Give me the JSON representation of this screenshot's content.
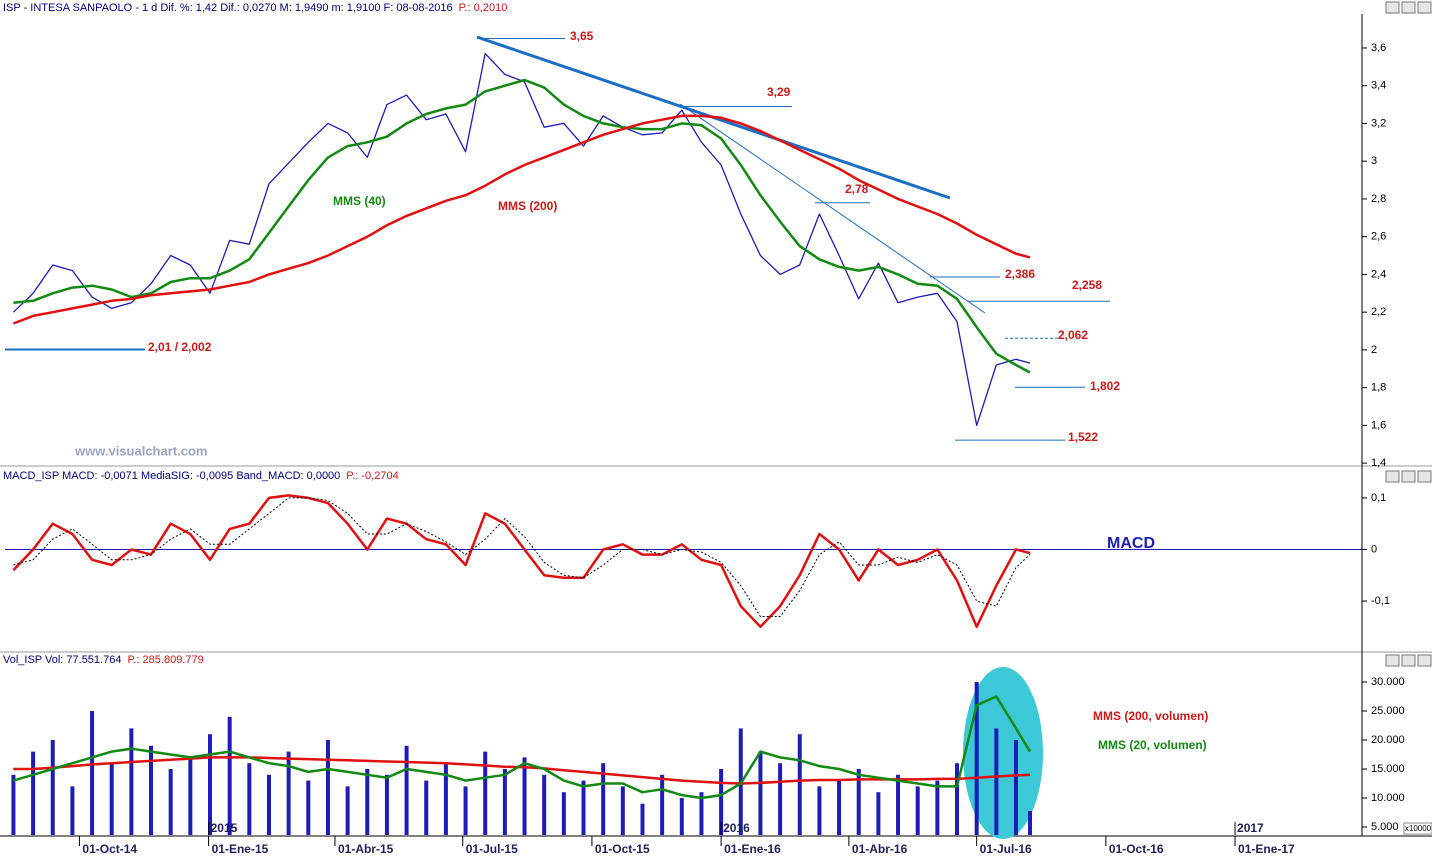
{
  "chart_data": [
    {
      "type": "line",
      "title": "ISP - INTESA SANPAOLO - 1 d Dif. %: 1,42 Dif.: 0,0270 M: 1,9490 m: 1,9100 F: 08-08-2016",
      "subtitle": "P.: 0,2010",
      "watermark": "www.visualchart.com",
      "x": [
        "2014-08-15",
        "2014-08-29",
        "2014-09-12",
        "2014-09-26",
        "2014-10-10",
        "2014-10-24",
        "2014-11-07",
        "2014-11-21",
        "2014-12-05",
        "2014-12-19",
        "2015-01-02",
        "2015-01-16",
        "2015-01-30",
        "2015-02-13",
        "2015-02-27",
        "2015-03-13",
        "2015-03-27",
        "2015-04-10",
        "2015-04-24",
        "2015-05-08",
        "2015-05-22",
        "2015-06-05",
        "2015-06-19",
        "2015-07-03",
        "2015-07-17",
        "2015-07-31",
        "2015-08-14",
        "2015-08-28",
        "2015-09-11",
        "2015-09-25",
        "2015-10-09",
        "2015-10-23",
        "2015-11-06",
        "2015-11-20",
        "2015-12-04",
        "2015-12-18",
        "2016-01-01",
        "2016-01-15",
        "2016-01-29",
        "2016-02-12",
        "2016-02-26",
        "2016-03-11",
        "2016-03-25",
        "2016-04-08",
        "2016-04-22",
        "2016-05-06",
        "2016-05-20",
        "2016-06-03",
        "2016-06-17",
        "2016-07-01",
        "2016-07-15",
        "2016-07-29",
        "2016-08-08"
      ],
      "series": [
        {
          "color": "#1c1cb8",
          "values": [
            2.2,
            2.3,
            2.45,
            2.42,
            2.28,
            2.22,
            2.25,
            2.35,
            2.5,
            2.45,
            2.3,
            2.58,
            2.56,
            2.88,
            2.99,
            3.1,
            3.2,
            3.15,
            3.02,
            3.3,
            3.35,
            3.22,
            3.25,
            3.05,
            3.57,
            3.46,
            3.42,
            3.18,
            3.2,
            3.08,
            3.24,
            3.18,
            3.14,
            3.15,
            3.27,
            3.1,
            2.98,
            2.72,
            2.5,
            2.4,
            2.45,
            2.72,
            2.5,
            2.27,
            2.46,
            2.25,
            2.28,
            2.3,
            2.15,
            1.6,
            1.92,
            1.95,
            1.93
          ]
        },
        {
          "name": "MMS (40)",
          "color": "#128a12",
          "values": [
            2.25,
            2.26,
            2.3,
            2.33,
            2.34,
            2.32,
            2.28,
            2.3,
            2.36,
            2.38,
            2.38,
            2.42,
            2.48,
            2.62,
            2.76,
            2.9,
            3.02,
            3.08,
            3.1,
            3.13,
            3.2,
            3.25,
            3.28,
            3.3,
            3.37,
            3.4,
            3.43,
            3.39,
            3.3,
            3.24,
            3.2,
            3.18,
            3.17,
            3.17,
            3.2,
            3.19,
            3.12,
            2.98,
            2.82,
            2.68,
            2.55,
            2.48,
            2.44,
            2.42,
            2.44,
            2.4,
            2.35,
            2.34,
            2.27,
            2.12,
            1.98,
            1.92,
            1.88
          ]
        },
        {
          "name": "MMS (200)",
          "color": "#e01010",
          "values": [
            2.14,
            2.18,
            2.2,
            2.22,
            2.24,
            2.26,
            2.27,
            2.29,
            2.3,
            2.31,
            2.32,
            2.34,
            2.36,
            2.4,
            2.43,
            2.46,
            2.5,
            2.55,
            2.6,
            2.66,
            2.71,
            2.75,
            2.79,
            2.82,
            2.87,
            2.93,
            2.98,
            3.02,
            3.06,
            3.1,
            3.14,
            3.17,
            3.2,
            3.22,
            3.24,
            3.24,
            3.23,
            3.2,
            3.16,
            3.11,
            3.06,
            3.01,
            2.96,
            2.9,
            2.85,
            2.8,
            2.76,
            2.72,
            2.67,
            2.61,
            2.56,
            2.51,
            2.49
          ]
        }
      ],
      "xlim": [
        "2014-08-09",
        "2017-03-31"
      ],
      "ylim": [
        1.39,
        3.78
      ],
      "yticks": [
        {
          "value": 1.4,
          "label": "1,4"
        },
        {
          "value": 1.6,
          "label": "1,6"
        },
        {
          "value": 1.8,
          "label": "1,8"
        },
        2,
        {
          "value": 2.2,
          "label": "2,2"
        },
        {
          "value": 2.4,
          "label": "2,4"
        },
        {
          "value": 2.6,
          "label": "2,6"
        },
        {
          "value": 2.8,
          "label": "2,8"
        },
        3,
        {
          "value": 3.2,
          "label": "3,2"
        },
        {
          "value": 3.4,
          "label": "3,4"
        },
        {
          "value": 3.6,
          "label": "3,6"
        }
      ],
      "annotations": [
        {
          "label": "3,65",
          "value": 3.65
        },
        {
          "label": "3,29",
          "value": 3.29
        },
        {
          "label": "2,78",
          "value": 2.78
        },
        {
          "label": "2,386",
          "value": 2.386
        },
        {
          "label": "2,258",
          "value": 2.258
        },
        {
          "label": "2,062",
          "value": 2.062
        },
        {
          "label": "1,802",
          "value": 1.802
        },
        {
          "label": "1,522",
          "value": 1.522
        },
        {
          "label": "2,01 / 2,002",
          "value": 2.002
        }
      ]
    },
    {
      "type": "line",
      "title": "MACD_ISP MACD: -0,0071 MediaSIG: -0,0095 Band_MACD: 0,0000",
      "subtitle": "P.: -0,2704",
      "x": [
        "2014-08-15",
        "2014-08-29",
        "2014-09-12",
        "2014-09-26",
        "2014-10-10",
        "2014-10-24",
        "2014-11-07",
        "2014-11-21",
        "2014-12-05",
        "2014-12-19",
        "2015-01-02",
        "2015-01-16",
        "2015-01-30",
        "2015-02-13",
        "2015-02-27",
        "2015-03-13",
        "2015-03-27",
        "2015-04-10",
        "2015-04-24",
        "2015-05-08",
        "2015-05-22",
        "2015-06-05",
        "2015-06-19",
        "2015-07-03",
        "2015-07-17",
        "2015-07-31",
        "2015-08-14",
        "2015-08-28",
        "2015-09-11",
        "2015-09-25",
        "2015-10-09",
        "2015-10-23",
        "2015-11-06",
        "2015-11-20",
        "2015-12-04",
        "2015-12-18",
        "2016-01-01",
        "2016-01-15",
        "2016-01-29",
        "2016-02-12",
        "2016-02-26",
        "2016-03-11",
        "2016-03-25",
        "2016-04-08",
        "2016-04-22",
        "2016-05-06",
        "2016-05-20",
        "2016-06-03",
        "2016-06-17",
        "2016-07-01",
        "2016-07-15",
        "2016-07-29",
        "2016-08-08"
      ],
      "series": [
        {
          "name": "MACD",
          "color": "#e01010",
          "values": [
            -0.04,
            0,
            0.05,
            0.03,
            -0.02,
            -0.03,
            0,
            -0.01,
            0.05,
            0.03,
            -0.02,
            0.04,
            0.05,
            0.1,
            0.105,
            0.1,
            0.09,
            0.05,
            0,
            0.06,
            0.05,
            0.02,
            0.01,
            -0.03,
            0.07,
            0.05,
            0,
            -0.05,
            -0.055,
            -0.055,
            0,
            0.01,
            -0.01,
            -0.01,
            0.01,
            -0.02,
            -0.03,
            -0.11,
            -0.15,
            -0.11,
            -0.05,
            0.03,
            0,
            -0.06,
            0,
            -0.03,
            -0.02,
            0,
            -0.06,
            -0.15,
            -0.07,
            0,
            -0.007
          ]
        },
        {
          "color": "#000000",
          "dashed": true,
          "values": [
            -0.03,
            -0.02,
            0.02,
            0.04,
            0.01,
            -0.02,
            -0.02,
            -0.01,
            0.02,
            0.04,
            0.01,
            0.01,
            0.04,
            0.07,
            0.1,
            0.1,
            0.095,
            0.07,
            0.03,
            0.03,
            0.05,
            0.035,
            0.015,
            -0.01,
            0.02,
            0.06,
            0.025,
            -0.025,
            -0.05,
            -0.055,
            -0.03,
            0,
            0,
            -0.01,
            0,
            -0.005,
            -0.025,
            -0.07,
            -0.13,
            -0.13,
            -0.08,
            -0.01,
            0.015,
            -0.03,
            -0.03,
            -0.015,
            -0.025,
            -0.01,
            -0.03,
            -0.1,
            -0.11,
            -0.035,
            -0.0095
          ]
        }
      ],
      "xlim": [
        "2014-08-09",
        "2017-03-31"
      ],
      "ylim": [
        -0.195,
        0.129
      ],
      "yticks": [
        {
          "value": 0.1,
          "label": "0,1"
        },
        0,
        {
          "value": -0.1,
          "label": "-0,1"
        }
      ],
      "zero_line": "#1c1cb8"
    },
    {
      "type": "bar",
      "title": "Vol_ISP Vol: 77.551.764",
      "subtitle": "P.: 285.809.779",
      "unit_label": "x10000",
      "x": [
        "2014-08-15",
        "2014-08-29",
        "2014-09-12",
        "2014-09-26",
        "2014-10-10",
        "2014-10-24",
        "2014-11-07",
        "2014-11-21",
        "2014-12-05",
        "2014-12-19",
        "2015-01-02",
        "2015-01-16",
        "2015-01-30",
        "2015-02-13",
        "2015-02-27",
        "2015-03-13",
        "2015-03-27",
        "2015-04-10",
        "2015-04-24",
        "2015-05-08",
        "2015-05-22",
        "2015-06-05",
        "2015-06-19",
        "2015-07-03",
        "2015-07-17",
        "2015-07-31",
        "2015-08-14",
        "2015-08-28",
        "2015-09-11",
        "2015-09-25",
        "2015-10-09",
        "2015-10-23",
        "2015-11-06",
        "2015-11-20",
        "2015-12-04",
        "2015-12-18",
        "2016-01-01",
        "2016-01-15",
        "2016-01-29",
        "2016-02-12",
        "2016-02-26",
        "2016-03-11",
        "2016-03-25",
        "2016-04-08",
        "2016-04-22",
        "2016-05-06",
        "2016-05-20",
        "2016-06-03",
        "2016-06-17",
        "2016-07-01",
        "2016-07-15",
        "2016-07-29",
        "2016-08-08"
      ],
      "values": [
        14000,
        18000,
        20000,
        12000,
        25000,
        16000,
        22000,
        19000,
        15000,
        17000,
        21000,
        24000,
        16000,
        14000,
        18000,
        13000,
        20000,
        12000,
        15000,
        14000,
        19000,
        13000,
        16000,
        12000,
        18000,
        15000,
        17000,
        14000,
        11000,
        13000,
        16000,
        12000,
        9000,
        14000,
        10000,
        11000,
        15000,
        22000,
        18000,
        16000,
        21000,
        12000,
        13000,
        15000,
        11000,
        14000,
        12000,
        13000,
        16000,
        30000,
        22000,
        20000,
        7755
      ],
      "color": "#1c1cb8",
      "series": [
        {
          "name": "MMS (200, volumen)",
          "color": "#e01010",
          "values": [
            15000,
            15000,
            15200,
            15500,
            15800,
            16000,
            16200,
            16400,
            16600,
            16800,
            17000,
            17000,
            17000,
            16900,
            16800,
            16700,
            16600,
            16500,
            16400,
            16300,
            16200,
            16100,
            16000,
            15800,
            15600,
            15400,
            15300,
            15100,
            14800,
            14500,
            14200,
            13900,
            13600,
            13300,
            13000,
            12800,
            12600,
            12500,
            12600,
            12800,
            13000,
            13100,
            13100,
            13200,
            13200,
            13200,
            13200,
            13300,
            13300,
            13500,
            13700,
            13900,
            14000
          ]
        },
        {
          "name": "MMS (20, volumen)",
          "color": "#128a12",
          "values": [
            13000,
            14000,
            15000,
            16000,
            17000,
            18000,
            18500,
            18000,
            17500,
            17000,
            17500,
            18000,
            17000,
            16000,
            15500,
            14500,
            15000,
            14500,
            14000,
            13500,
            15000,
            14500,
            14000,
            13000,
            13500,
            14000,
            16000,
            15000,
            13000,
            12000,
            12500,
            12500,
            11000,
            11500,
            10500,
            10000,
            10500,
            12500,
            18000,
            17000,
            16500,
            15500,
            15000,
            14000,
            13500,
            13000,
            12500,
            12000,
            12000,
            26000,
            27500,
            22000,
            18000
          ]
        }
      ],
      "xlim": [
        "2014-08-09",
        "2017-03-31"
      ],
      "ylim": [
        3620,
        32590
      ],
      "yticks": [
        {
          "value": 5000,
          "label": "5.000"
        },
        {
          "value": 10000,
          "label": "10.000"
        },
        {
          "value": 15000,
          "label": "15.000"
        },
        {
          "value": 20000,
          "label": "20.000"
        },
        {
          "value": 25000,
          "label": "25.000"
        },
        {
          "value": 30000,
          "label": "30.000"
        }
      ],
      "year_labels": [
        {
          "value": "2015-01-01",
          "label": "2015"
        },
        {
          "value": "2016-01-01",
          "label": "2016"
        },
        {
          "value": "2017-01-01",
          "label": "2017"
        }
      ],
      "xticks": [
        {
          "value": "2014-10-01",
          "label": "01-Oct-14"
        },
        {
          "value": "2015-01-01",
          "label": "01-Ene-15"
        },
        {
          "value": "2015-04-01",
          "label": "01-Abr-15"
        },
        {
          "value": "2015-07-01",
          "label": "01-Jul-15"
        },
        {
          "value": "2015-10-01",
          "label": "01-Oct-15"
        },
        {
          "value": "2016-01-01",
          "label": "01-Ene-16"
        },
        {
          "value": "2016-04-01",
          "label": "01-Abr-16"
        },
        {
          "value": "2016-07-01",
          "label": "01-Jul-16"
        },
        {
          "value": "2016-10-01",
          "label": "01-Oct-16"
        },
        {
          "value": "2017-01-01",
          "label": "01-Ene-17"
        }
      ]
    }
  ]
}
